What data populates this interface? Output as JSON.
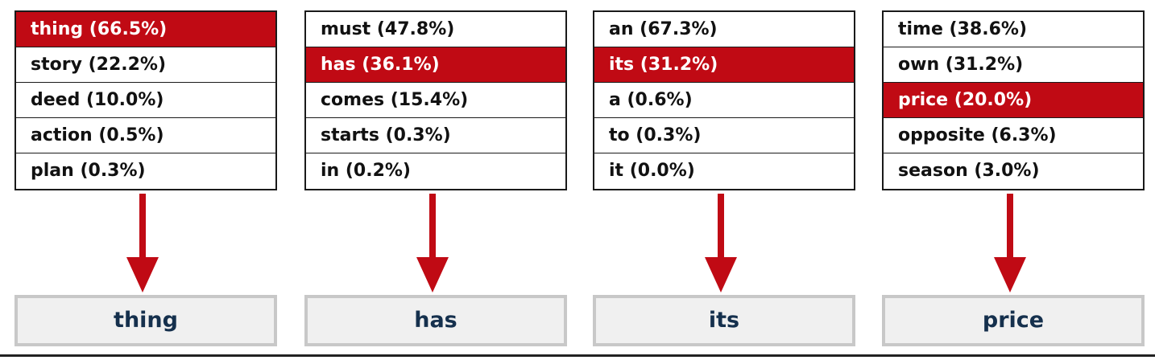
{
  "colors": {
    "selected_bg": "#c00a14",
    "arrow": "#c00a14",
    "output_text": "#15304d",
    "output_border": "#c8c8c8",
    "output_bg": "#f0f0f0"
  },
  "steps": [
    {
      "candidates": [
        {
          "text": "thing (66.5%)",
          "selected": true
        },
        {
          "text": "story (22.2%)",
          "selected": false
        },
        {
          "text": "deed (10.0%)",
          "selected": false
        },
        {
          "text": "action (0.5%)",
          "selected": false
        },
        {
          "text": "plan (0.3%)",
          "selected": false
        }
      ],
      "output": "thing"
    },
    {
      "candidates": [
        {
          "text": "must (47.8%)",
          "selected": false
        },
        {
          "text": "has (36.1%)",
          "selected": true
        },
        {
          "text": "comes (15.4%)",
          "selected": false
        },
        {
          "text": "starts (0.3%)",
          "selected": false
        },
        {
          "text": "in (0.2%)",
          "selected": false
        }
      ],
      "output": "has"
    },
    {
      "candidates": [
        {
          "text": "an (67.3%)",
          "selected": false
        },
        {
          "text": "its (31.2%)",
          "selected": true
        },
        {
          "text": "a (0.6%)",
          "selected": false
        },
        {
          "text": "to (0.3%)",
          "selected": false
        },
        {
          "text": "it (0.0%)",
          "selected": false
        }
      ],
      "output": "its"
    },
    {
      "candidates": [
        {
          "text": "time (38.6%)",
          "selected": false
        },
        {
          "text": "own (31.2%)",
          "selected": false
        },
        {
          "text": "price (20.0%)",
          "selected": true
        },
        {
          "text": "opposite (6.3%)",
          "selected": false
        },
        {
          "text": "season (3.0%)",
          "selected": false
        }
      ],
      "output": "price"
    }
  ]
}
